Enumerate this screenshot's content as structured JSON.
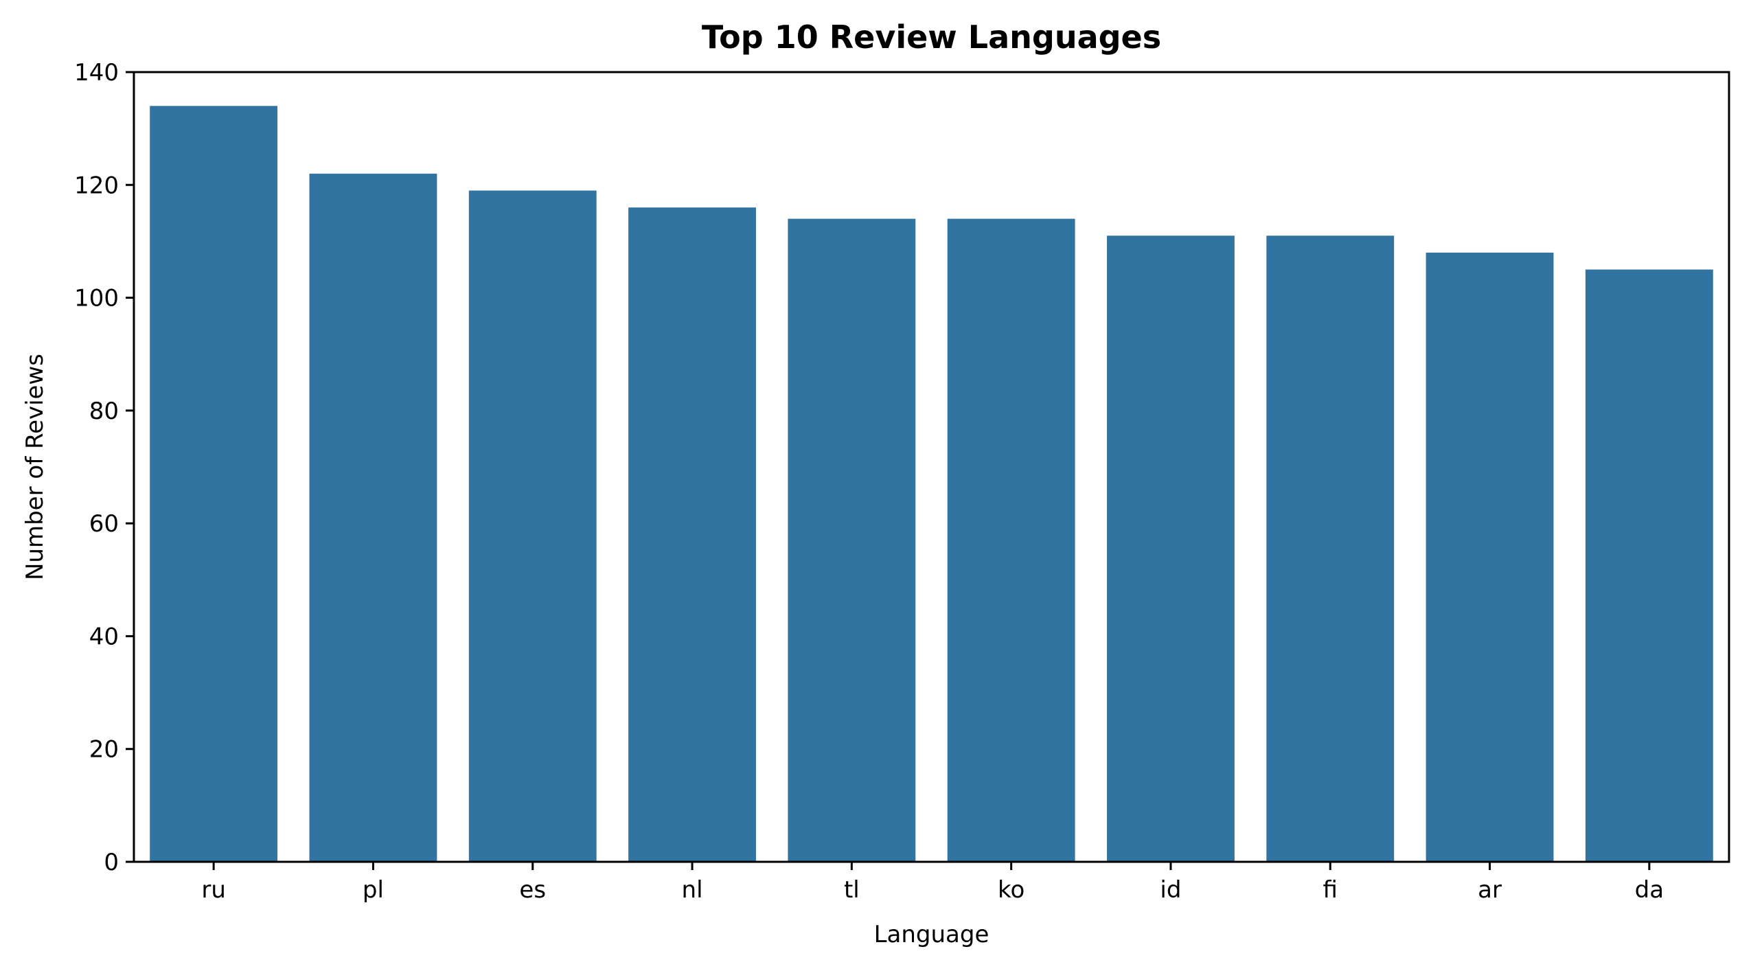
{
  "chart_data": {
    "type": "bar",
    "title": "Top 10 Review Languages",
    "xlabel": "Language",
    "ylabel": "Number of Reviews",
    "categories": [
      "ru",
      "pl",
      "es",
      "nl",
      "tl",
      "ko",
      "id",
      "fi",
      "ar",
      "da"
    ],
    "values": [
      134,
      122,
      119,
      116,
      114,
      114,
      111,
      111,
      108,
      105
    ],
    "ylim": [
      0,
      140
    ],
    "yticks": [
      0,
      20,
      40,
      60,
      80,
      100,
      120,
      140
    ],
    "grid": false,
    "legend": "none",
    "bar_color": "#3274a1"
  }
}
